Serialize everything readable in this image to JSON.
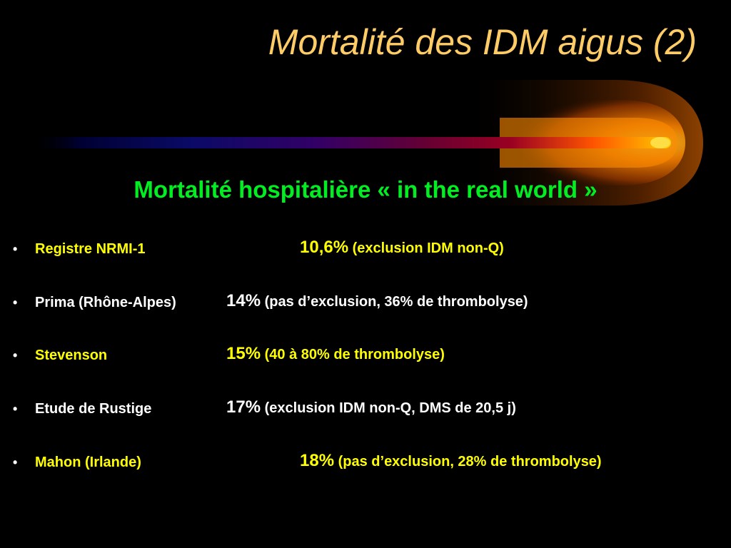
{
  "title": "Mortalité des IDM aigus (2)",
  "subtitle": "Mortalité hospitalière « in the real world »",
  "bullet_char": "•",
  "items": [
    {
      "name": "Registre NRMI-1",
      "pct": "10,6%",
      "note": "(exclusion IDM non-Q)"
    },
    {
      "name": "Prima (Rhône-Alpes)",
      "pct": "14%",
      "note": "(pas d’exclusion, 36% de thrombolyse)"
    },
    {
      "name": "Stevenson",
      "pct": "15%",
      "note": "(40 à 80% de thrombolyse)"
    },
    {
      "name": "Etude de Rustige",
      "pct": "17%",
      "note": "(exclusion IDM non-Q, DMS de 20,5 j)"
    },
    {
      "name": "Mahon (Irlande)",
      "pct": "18%",
      "note": "(pas d’exclusion, 28% de thrombolyse)"
    }
  ],
  "colors": {
    "background": "#000000",
    "title": "#ffcc66",
    "subtitle": "#00ee22",
    "item_alt_1": "#ffff00",
    "item_alt_2": "#ffffff",
    "comet_core": "#ffcc00",
    "comet_glow": "#ff6600"
  }
}
